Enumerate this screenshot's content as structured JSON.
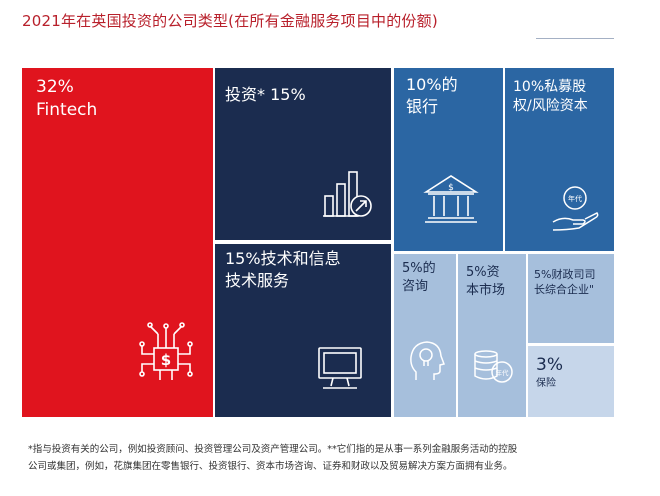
{
  "title": "2021年在英国投资的公司类型(在所有金融服务项目中的份额)",
  "colors": {
    "red": "#e0141e",
    "navy": "#1b2c4f",
    "blue": "#2b66a3",
    "light": "#a6bfdc",
    "pale": "#c6d6ea",
    "white": "#ffffff",
    "dark_text": "#1b2c4f"
  },
  "chart_data": {
    "type": "treemap",
    "title": "2021年在英国投资的公司类型(在所有金融服务项目中的份额)",
    "tiles": [
      {
        "id": "fintech",
        "line1": "32%",
        "line2": "Fintech",
        "value": 32,
        "icon": "circuit-chip-dollar-icon"
      },
      {
        "id": "investment",
        "line1": "投资* 15%",
        "line2": "",
        "value": 15,
        "icon": "growth-chart-arrow-icon"
      },
      {
        "id": "bank",
        "line1": "10%的",
        "line2": "银行",
        "value": 10,
        "icon": "bank-building-icon"
      },
      {
        "id": "private_equity",
        "line1": "10%私募股",
        "line2": "权/风险资本",
        "value": 10,
        "icon": "hand-coin-icon",
        "icon_text": "年代"
      },
      {
        "id": "tech",
        "line1": "15%技术和信息",
        "line2": "技术服务",
        "value": 15,
        "icon": "computer-monitor-icon"
      },
      {
        "id": "consulting",
        "line1": "5%的",
        "line2": "咨询",
        "value": 5,
        "icon": "lightbulb-head-icon"
      },
      {
        "id": "capital_markets",
        "line1": "5%资",
        "line2": "本市场",
        "value": 5,
        "icon": "coin-stack-icon",
        "icon_text": "年代"
      },
      {
        "id": "treasury",
        "line1": "5%财政司司",
        "line2": "长综合企业\"",
        "value": 5,
        "icon": ""
      },
      {
        "id": "insurance",
        "line1": "3%",
        "line2": "保险",
        "value": 3,
        "icon": ""
      }
    ]
  },
  "footnote": {
    "line1": "*指与投资有关的公司，例如投资顾问、投资管理公司及资产管理公司。**它们指的是从事一系列金融服务活动的控股",
    "line2": "公司或集团，例如，花旗集团在零售银行、投资银行、资本市场咨询、证券和财政以及贸易解决方案方面拥有业务。"
  }
}
